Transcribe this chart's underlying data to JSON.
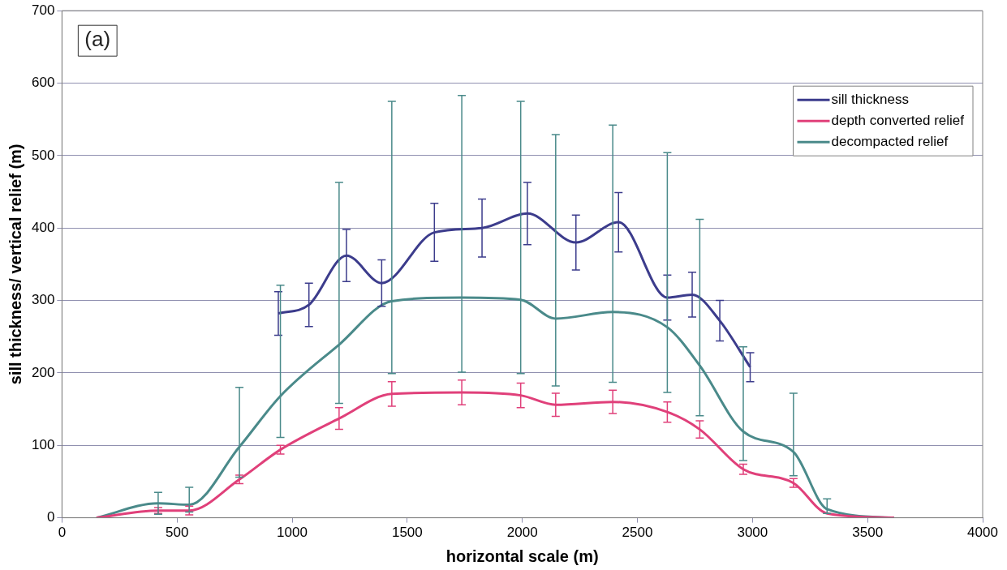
{
  "chart_data": {
    "type": "line",
    "xlabel": "horizontal scale (m)",
    "ylabel": "sill thickness/ vertical relief (m)",
    "annotations": [
      "(a)"
    ],
    "xlim": [
      0,
      4000
    ],
    "xticks": [
      0,
      500,
      1000,
      1500,
      2000,
      2500,
      3000,
      3500,
      4000
    ],
    "ylim": [
      0,
      700
    ],
    "yticks": [
      0,
      100,
      200,
      300,
      400,
      500,
      600,
      700
    ],
    "grid": "y",
    "legend": "top right",
    "marker": "none",
    "line_style": "solid",
    "series": [
      {
        "name": "sill thickness",
        "color": "#3c3c8c",
        "x": [
          940,
          1073,
          1236,
          1389,
          1618,
          1825,
          2022,
          2233,
          2418,
          2630,
          2738,
          2858,
          2990
        ],
        "values": [
          282,
          294,
          362,
          324,
          394,
          400,
          420,
          380,
          408,
          304,
          308,
          272,
          208
        ],
        "errors": [
          30,
          30,
          36,
          32,
          40,
          40,
          43,
          38,
          41,
          31,
          31,
          28,
          20
        ]
      },
      {
        "name": "depth converted relief",
        "color": "#e0407a",
        "x": [
          150,
          418,
          553,
          771,
          949,
          1204,
          1433,
          1737,
          1993,
          2145,
          2393,
          2630,
          2771,
          2960,
          3178,
          3324,
          3615
        ],
        "values": [
          0,
          10,
          10,
          53,
          94,
          137,
          171,
          173,
          169,
          156,
          160,
          146,
          122,
          67,
          48,
          6,
          0
        ],
        "errors": [
          null,
          4,
          6,
          6,
          6,
          15,
          17,
          17,
          17,
          16,
          16,
          14,
          12,
          7,
          6,
          null,
          null
        ]
      },
      {
        "name": "decompacted relief",
        "color": "#4a8a8a",
        "x": [
          150,
          418,
          553,
          771,
          949,
          1204,
          1433,
          1737,
          1993,
          2145,
          2393,
          2630,
          2771,
          2960,
          3178,
          3324,
          3615
        ],
        "values": [
          0,
          20,
          18,
          98,
          168,
          239,
          299,
          304,
          301,
          275,
          284,
          263,
          210,
          119,
          91,
          12,
          0
        ],
        "errors": [
          null,
          [
            5,
            35
          ],
          [
            8,
            42
          ],
          [
            56,
            180
          ],
          [
            111,
            321
          ],
          [
            158,
            463
          ],
          [
            199,
            575
          ],
          [
            201,
            583
          ],
          [
            199,
            575
          ],
          [
            182,
            529
          ],
          [
            187,
            542
          ],
          [
            173,
            504
          ],
          [
            141,
            412
          ],
          [
            79,
            236
          ],
          [
            58,
            172
          ],
          [
            6,
            26
          ],
          null
        ]
      }
    ]
  }
}
